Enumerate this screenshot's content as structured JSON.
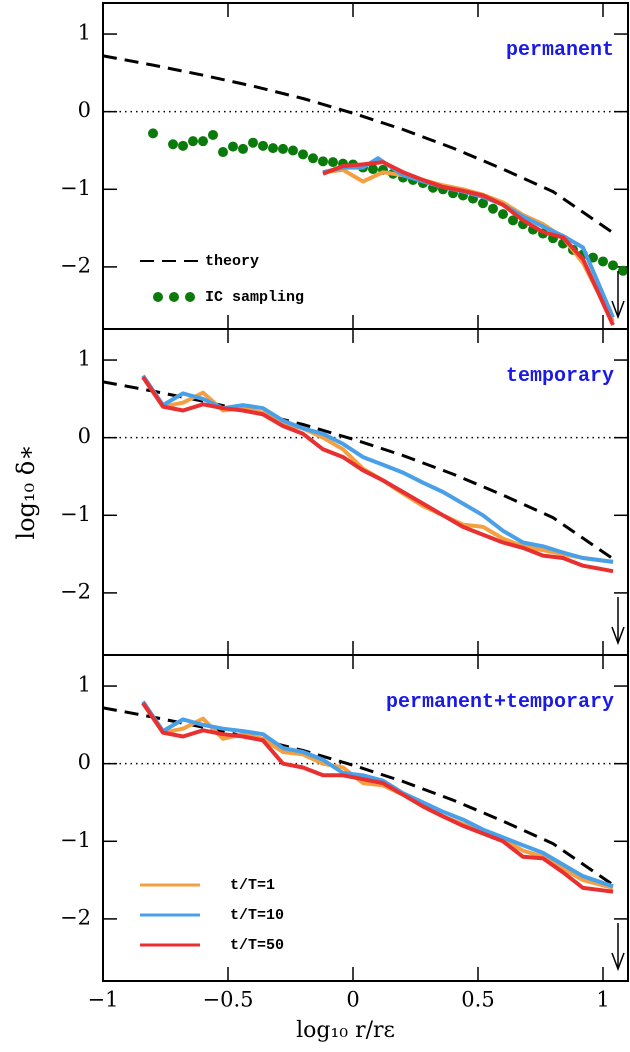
{
  "chart_data": [
    {
      "type": "line",
      "annotation": "permanent",
      "legend": true,
      "xlim": [
        -1,
        1.1
      ],
      "ylim": [
        -2.8,
        1.4
      ],
      "xticks": [
        -1,
        -0.5,
        0,
        0.5,
        1
      ],
      "yticks": [
        1,
        0,
        {
          "value": -1,
          "label": "−1"
        },
        {
          "value": -2,
          "label": "−2"
        }
      ],
      "reference_line": 0,
      "series": [
        {
          "name": "theory",
          "color": "#000000",
          "style": "dashed",
          "x": [
            -1,
            -0.8,
            -0.6,
            -0.4,
            -0.2,
            0,
            0.2,
            0.4,
            0.6,
            0.8,
            1.04
          ],
          "values": [
            0.72,
            0.6,
            0.47,
            0.33,
            0.17,
            -0.02,
            -0.23,
            -0.47,
            -0.74,
            -1.03,
            -1.56
          ]
        },
        {
          "name": "IC sampling",
          "color": "#0a7a0a",
          "style": "dots",
          "x": [
            -0.8,
            -0.72,
            -0.68,
            -0.64,
            -0.6,
            -0.56,
            -0.52,
            -0.48,
            -0.44,
            -0.4,
            -0.36,
            -0.32,
            -0.28,
            -0.24,
            -0.2,
            -0.16,
            -0.12,
            -0.08,
            -0.04,
            0,
            0.04,
            0.08,
            0.12,
            0.16,
            0.2,
            0.24,
            0.28,
            0.32,
            0.36,
            0.4,
            0.44,
            0.48,
            0.52,
            0.56,
            0.6,
            0.64,
            0.68,
            0.72,
            0.76,
            0.8,
            0.84,
            0.88,
            0.92,
            0.96,
            1.0,
            1.04,
            1.08
          ],
          "values": [
            -0.28,
            -0.42,
            -0.44,
            -0.38,
            -0.38,
            -0.3,
            -0.52,
            -0.45,
            -0.48,
            -0.4,
            -0.44,
            -0.47,
            -0.48,
            -0.5,
            -0.55,
            -0.6,
            -0.64,
            -0.65,
            -0.67,
            -0.68,
            -0.72,
            -0.74,
            -0.75,
            -0.8,
            -0.85,
            -0.88,
            -0.92,
            -0.98,
            -1.0,
            -1.05,
            -1.08,
            -1.12,
            -1.18,
            -1.25,
            -1.32,
            -1.4,
            -1.45,
            -1.52,
            -1.57,
            -1.63,
            -1.7,
            -1.78,
            -1.84,
            -1.88,
            -1.93,
            -1.98,
            -2.05
          ]
        },
        {
          "color": "#f5a040",
          "style": "solid",
          "x": [
            -0.12,
            -0.04,
            0.04,
            0.12,
            0.2,
            0.28,
            0.36,
            0.44,
            0.52,
            0.6,
            0.68,
            0.76,
            0.84,
            0.92,
            1.04
          ],
          "values": [
            -0.78,
            -0.75,
            -0.9,
            -0.78,
            -0.82,
            -0.88,
            -0.95,
            -1.0,
            -1.07,
            -1.17,
            -1.33,
            -1.45,
            -1.62,
            -1.95,
            -2.7
          ]
        },
        {
          "color": "#4aa0e8",
          "style": "solid",
          "x": [
            -0.12,
            -0.04,
            0.04,
            0.1,
            0.2,
            0.28,
            0.36,
            0.44,
            0.52,
            0.6,
            0.68,
            0.76,
            0.84,
            0.92,
            0.96,
            1.04
          ],
          "values": [
            -0.78,
            -0.72,
            -0.72,
            -0.6,
            -0.82,
            -0.9,
            -0.97,
            -1.03,
            -1.1,
            -1.2,
            -1.35,
            -1.48,
            -1.6,
            -1.75,
            -2.05,
            -2.65
          ]
        },
        {
          "color": "#e83030",
          "style": "solid",
          "x": [
            -0.12,
            -0.04,
            0.04,
            0.12,
            0.2,
            0.28,
            0.36,
            0.44,
            0.52,
            0.6,
            0.68,
            0.76,
            0.84,
            0.92,
            1.04
          ],
          "values": [
            -0.8,
            -0.7,
            -0.68,
            -0.65,
            -0.78,
            -0.88,
            -0.97,
            -1.02,
            -1.08,
            -1.2,
            -1.4,
            -1.55,
            -1.62,
            -1.9,
            -2.75
          ]
        }
      ]
    },
    {
      "type": "line",
      "annotation": "temporary",
      "legend": false,
      "ylabel": "log₁₀ δ∗",
      "xlim": [
        -1,
        1.1
      ],
      "ylim": [
        -2.8,
        1.4
      ],
      "xticks": [
        -1,
        -0.5,
        0,
        0.5,
        1
      ],
      "yticks": [
        1,
        0,
        {
          "value": -1,
          "label": "−1"
        },
        {
          "value": -2,
          "label": "−2"
        }
      ],
      "reference_line": 0,
      "series": [
        {
          "color": "#000000",
          "style": "dashed",
          "x": [
            -1,
            -0.8,
            -0.6,
            -0.4,
            -0.2,
            0,
            0.2,
            0.4,
            0.6,
            0.8,
            1.04
          ],
          "values": [
            0.72,
            0.6,
            0.47,
            0.33,
            0.17,
            -0.02,
            -0.23,
            -0.47,
            -0.74,
            -1.03,
            -1.56
          ]
        },
        {
          "color": "#f5a040",
          "style": "solid",
          "x": [
            -0.84,
            -0.76,
            -0.68,
            -0.6,
            -0.52,
            -0.44,
            -0.36,
            -0.28,
            -0.2,
            -0.12,
            -0.04,
            0.04,
            0.12,
            0.2,
            0.28,
            0.36,
            0.44,
            0.52,
            0.6,
            0.68,
            0.76,
            0.84,
            0.92,
            1.04
          ],
          "values": [
            0.78,
            0.4,
            0.45,
            0.58,
            0.35,
            0.38,
            0.32,
            0.18,
            0.12,
            0.0,
            -0.15,
            -0.4,
            -0.55,
            -0.72,
            -0.88,
            -1.0,
            -1.12,
            -1.15,
            -1.3,
            -1.4,
            -1.45,
            -1.5,
            -1.55,
            -1.6
          ]
        },
        {
          "color": "#4aa0e8",
          "style": "solid",
          "x": [
            -0.84,
            -0.76,
            -0.68,
            -0.6,
            -0.52,
            -0.44,
            -0.36,
            -0.28,
            -0.2,
            -0.12,
            -0.04,
            0.04,
            0.12,
            0.2,
            0.28,
            0.36,
            0.44,
            0.52,
            0.6,
            0.68,
            0.76,
            0.84,
            0.92,
            1.04
          ],
          "values": [
            0.8,
            0.42,
            0.57,
            0.5,
            0.38,
            0.42,
            0.38,
            0.22,
            0.12,
            0.05,
            -0.08,
            -0.25,
            -0.35,
            -0.45,
            -0.58,
            -0.7,
            -0.85,
            -1.0,
            -1.2,
            -1.35,
            -1.4,
            -1.48,
            -1.55,
            -1.6
          ]
        },
        {
          "color": "#e83030",
          "style": "solid",
          "x": [
            -0.84,
            -0.76,
            -0.68,
            -0.6,
            -0.52,
            -0.44,
            -0.36,
            -0.28,
            -0.2,
            -0.12,
            -0.04,
            0.04,
            0.12,
            0.2,
            0.28,
            0.36,
            0.44,
            0.52,
            0.6,
            0.68,
            0.76,
            0.84,
            0.92,
            1.04
          ],
          "values": [
            0.78,
            0.4,
            0.35,
            0.43,
            0.38,
            0.35,
            0.3,
            0.15,
            0.05,
            -0.15,
            -0.25,
            -0.42,
            -0.55,
            -0.7,
            -0.85,
            -1.0,
            -1.15,
            -1.25,
            -1.35,
            -1.42,
            -1.52,
            -1.55,
            -1.65,
            -1.72
          ]
        }
      ]
    },
    {
      "type": "line",
      "annotation": "permanent+temporary",
      "legend": true,
      "xlabel": "log₁₀ r/rε",
      "xlim": [
        -1,
        1.1
      ],
      "ylim": [
        -2.8,
        1.4
      ],
      "xticks": [
        {
          "value": -1,
          "label": "−1"
        },
        {
          "value": -0.5,
          "label": "−0.5"
        },
        0,
        0.5,
        1
      ],
      "yticks": [
        1,
        0,
        {
          "value": -1,
          "label": "−1"
        },
        {
          "value": -2,
          "label": "−2"
        }
      ],
      "reference_line": 0,
      "series": [
        {
          "color": "#000000",
          "style": "dashed",
          "x": [
            -1,
            -0.8,
            -0.6,
            -0.4,
            -0.2,
            0,
            0.2,
            0.4,
            0.6,
            0.8,
            1.04
          ],
          "values": [
            0.72,
            0.6,
            0.47,
            0.33,
            0.17,
            -0.02,
            -0.23,
            -0.47,
            -0.74,
            -1.03,
            -1.56
          ]
        },
        {
          "name": "t/T=1",
          "color": "#f5a040",
          "style": "solid",
          "x": [
            -0.84,
            -0.76,
            -0.68,
            -0.6,
            -0.52,
            -0.44,
            -0.36,
            -0.28,
            -0.2,
            -0.12,
            -0.04,
            0.04,
            0.12,
            0.2,
            0.28,
            0.36,
            0.44,
            0.52,
            0.6,
            0.68,
            0.76,
            0.84,
            0.92,
            1.04
          ],
          "values": [
            0.78,
            0.4,
            0.45,
            0.58,
            0.32,
            0.38,
            0.32,
            0.15,
            0.12,
            0.0,
            -0.05,
            -0.25,
            -0.28,
            -0.4,
            -0.55,
            -0.68,
            -0.78,
            -0.88,
            -0.98,
            -1.12,
            -1.2,
            -1.35,
            -1.5,
            -1.6
          ]
        },
        {
          "name": "t/T=10",
          "color": "#4aa0e8",
          "style": "solid",
          "x": [
            -0.84,
            -0.76,
            -0.68,
            -0.6,
            -0.52,
            -0.44,
            -0.36,
            -0.28,
            -0.2,
            -0.12,
            -0.04,
            0.04,
            0.12,
            0.2,
            0.28,
            0.36,
            0.44,
            0.52,
            0.6,
            0.68,
            0.76,
            0.84,
            0.92,
            1.04
          ],
          "values": [
            0.8,
            0.42,
            0.57,
            0.5,
            0.45,
            0.42,
            0.38,
            0.2,
            0.15,
            0.05,
            -0.12,
            -0.15,
            -0.22,
            -0.38,
            -0.5,
            -0.62,
            -0.72,
            -0.85,
            -0.95,
            -1.05,
            -1.15,
            -1.3,
            -1.45,
            -1.58
          ]
        },
        {
          "name": "t/T=50",
          "color": "#e83030",
          "style": "solid",
          "x": [
            -0.84,
            -0.76,
            -0.68,
            -0.6,
            -0.52,
            -0.44,
            -0.36,
            -0.28,
            -0.2,
            -0.12,
            -0.04,
            0.04,
            0.12,
            0.2,
            0.28,
            0.36,
            0.44,
            0.52,
            0.6,
            0.68,
            0.76,
            0.84,
            0.92,
            1.04
          ],
          "values": [
            0.78,
            0.4,
            0.35,
            0.43,
            0.38,
            0.35,
            0.3,
            0.0,
            -0.05,
            -0.15,
            -0.15,
            -0.2,
            -0.25,
            -0.4,
            -0.55,
            -0.68,
            -0.8,
            -0.9,
            -1.0,
            -1.2,
            -1.22,
            -1.4,
            -1.6,
            -1.65
          ]
        }
      ]
    }
  ]
}
